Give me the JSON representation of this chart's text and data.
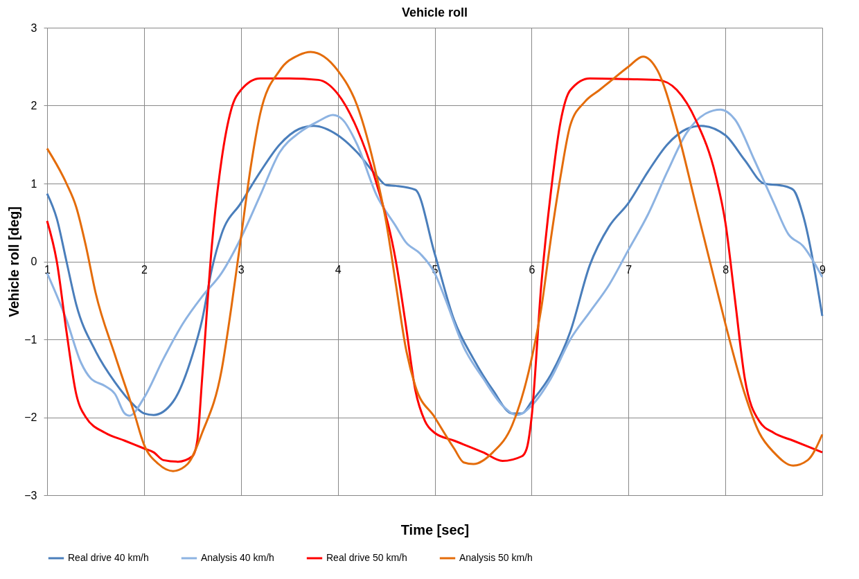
{
  "chart_data": {
    "type": "line",
    "title": "Vehicle roll",
    "xlabel": "Time [sec]",
    "ylabel": "Vehicle roll [deg]",
    "xlim": [
      1,
      9
    ],
    "xticks": [
      1,
      2,
      3,
      4,
      5,
      6,
      7,
      8,
      9
    ],
    "ylim": [
      -3,
      3
    ],
    "yticks": [
      -3,
      -2,
      -1,
      0,
      1,
      2,
      3
    ],
    "grid": true,
    "legend": "bottom",
    "marker": "none",
    "line_style": "solid",
    "series": [
      {
        "name": "Real drive 40 km/h",
        "color": "#4a7ebb",
        "x": [
          1,
          1.1,
          1.2,
          1.3,
          1.5,
          1.7,
          1.9,
          2.0,
          2.1,
          2.3,
          2.5,
          2.6,
          2.7,
          2.8,
          3.0,
          3.2,
          3.4,
          3.6,
          3.75,
          4.0,
          4.2,
          4.4,
          4.5,
          4.6,
          4.8,
          5.0,
          5.2,
          5.4,
          5.6,
          5.8,
          5.9,
          6.0,
          6.2,
          6.4,
          6.6,
          6.8,
          7.0,
          7.2,
          7.4,
          7.6,
          7.75,
          8.0,
          8.2,
          8.4,
          8.6,
          8.7,
          8.8,
          9.0
        ],
        "values": [
          0.87,
          0.55,
          0.0,
          -0.55,
          -1.15,
          -1.55,
          -1.85,
          -1.95,
          -1.97,
          -1.8,
          -1.2,
          -0.75,
          -0.1,
          0.35,
          0.75,
          1.15,
          1.5,
          1.7,
          1.74,
          1.62,
          1.4,
          1.1,
          0.98,
          0.97,
          0.92,
          0.1,
          -0.75,
          -1.25,
          -1.65,
          -1.95,
          -1.95,
          -1.8,
          -1.45,
          -0.9,
          -0.05,
          0.45,
          0.75,
          1.15,
          1.5,
          1.7,
          1.74,
          1.62,
          1.3,
          1.0,
          0.97,
          0.92,
          0.6,
          -0.7
        ]
      },
      {
        "name": "Analysis 40 km/h",
        "color": "#8db3e2",
        "x": [
          1,
          1.2,
          1.35,
          1.45,
          1.6,
          1.7,
          1.8,
          1.85,
          2.0,
          2.2,
          2.4,
          2.6,
          2.8,
          3.0,
          3.2,
          3.4,
          3.6,
          3.8,
          3.95,
          4.05,
          4.2,
          4.4,
          4.6,
          4.7,
          4.85,
          5.0,
          5.1,
          5.3,
          5.5,
          5.7,
          5.85,
          6.0,
          6.2,
          6.4,
          6.6,
          6.8,
          7.0,
          7.2,
          7.4,
          7.6,
          7.8,
          7.95,
          8.1,
          8.3,
          8.5,
          8.65,
          8.8,
          9.0
        ],
        "values": [
          -0.15,
          -0.75,
          -1.3,
          -1.5,
          -1.6,
          -1.7,
          -1.95,
          -1.98,
          -1.75,
          -1.25,
          -0.8,
          -0.45,
          -0.15,
          0.3,
          0.85,
          1.4,
          1.65,
          1.8,
          1.88,
          1.82,
          1.5,
          0.85,
          0.45,
          0.25,
          0.1,
          -0.15,
          -0.45,
          -1.1,
          -1.5,
          -1.85,
          -1.97,
          -1.85,
          -1.5,
          -1.0,
          -0.65,
          -0.3,
          0.15,
          0.6,
          1.15,
          1.65,
          1.9,
          1.95,
          1.82,
          1.3,
          0.75,
          0.35,
          0.2,
          -0.2
        ]
      },
      {
        "name": "Real drive 50 km/h",
        "color": "#ff0000",
        "x": [
          1,
          1.1,
          1.2,
          1.3,
          1.4,
          1.6,
          1.8,
          2.0,
          2.1,
          2.2,
          2.35,
          2.5,
          2.55,
          2.6,
          2.7,
          2.8,
          2.9,
          3.0,
          3.2,
          3.5,
          3.8,
          4.0,
          4.2,
          4.4,
          4.6,
          4.7,
          4.8,
          4.9,
          5.0,
          5.2,
          5.5,
          5.7,
          5.9,
          5.95,
          6.0,
          6.1,
          6.2,
          6.3,
          6.4,
          6.6,
          7.0,
          7.3,
          7.5,
          7.7,
          7.9,
          8.0,
          8.1,
          8.2,
          8.35,
          8.5,
          8.7,
          9.0
        ],
        "values": [
          0.52,
          0.0,
          -0.9,
          -1.7,
          -2.0,
          -2.2,
          -2.3,
          -2.4,
          -2.45,
          -2.55,
          -2.57,
          -2.5,
          -2.3,
          -1.5,
          0.2,
          1.3,
          1.95,
          2.2,
          2.35,
          2.35,
          2.33,
          2.15,
          1.7,
          1.0,
          0.0,
          -0.8,
          -1.65,
          -2.05,
          -2.2,
          -2.3,
          -2.45,
          -2.56,
          -2.5,
          -2.4,
          -2.0,
          -0.3,
          0.9,
          1.8,
          2.2,
          2.35,
          2.34,
          2.33,
          2.2,
          1.8,
          1.1,
          0.5,
          -0.5,
          -1.5,
          -2.05,
          -2.2,
          -2.3,
          -2.45
        ]
      },
      {
        "name": "Analysis 50 km/h",
        "color": "#e46c0a",
        "x": [
          1,
          1.2,
          1.3,
          1.4,
          1.5,
          1.7,
          1.9,
          2.0,
          2.15,
          2.3,
          2.45,
          2.6,
          2.8,
          2.9,
          3.0,
          3.1,
          3.2,
          3.4,
          3.6,
          3.72,
          4.0,
          4.2,
          4.4,
          4.5,
          4.6,
          4.7,
          4.8,
          5.0,
          5.2,
          5.3,
          5.4,
          5.6,
          5.8,
          6.0,
          6.1,
          6.2,
          6.3,
          6.4,
          6.55,
          6.7,
          6.8,
          7.0,
          7.15,
          7.3,
          7.5,
          7.7,
          7.9,
          8.0,
          8.2,
          8.35,
          8.5,
          8.7,
          8.85,
          9.0
        ],
        "values": [
          1.45,
          1.0,
          0.7,
          0.2,
          -0.4,
          -1.2,
          -1.95,
          -2.35,
          -2.6,
          -2.69,
          -2.6,
          -2.2,
          -1.4,
          -0.6,
          0.3,
          1.2,
          1.9,
          2.45,
          2.65,
          2.69,
          2.45,
          2.0,
          1.1,
          0.5,
          -0.3,
          -1.1,
          -1.6,
          -2.0,
          -2.4,
          -2.58,
          -2.6,
          -2.45,
          -2.1,
          -1.25,
          -0.6,
          0.3,
          1.1,
          1.75,
          2.05,
          2.2,
          2.3,
          2.5,
          2.63,
          2.45,
          1.7,
          0.7,
          -0.3,
          -0.8,
          -1.7,
          -2.2,
          -2.45,
          -2.62,
          -2.55,
          -2.22
        ]
      }
    ]
  }
}
